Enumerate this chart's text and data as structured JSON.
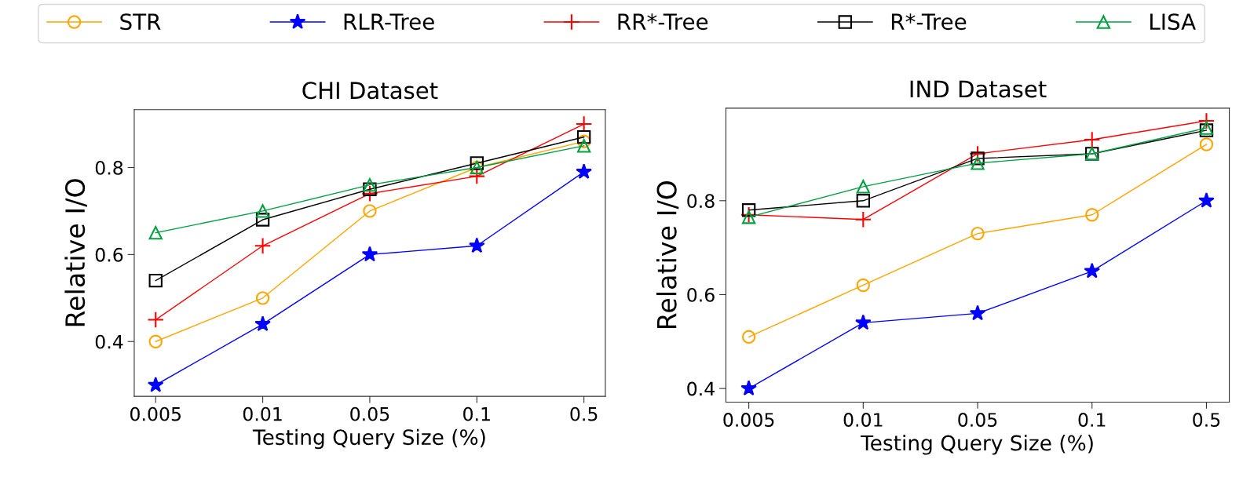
{
  "chart_data": [
    {
      "type": "line",
      "title": "CHI Dataset",
      "xlabel": "Testing Query Size (%)",
      "ylabel": "Relative I/O",
      "categories": [
        "0.005",
        "0.01",
        "0.05",
        "0.1",
        "0.5"
      ],
      "ylim": [
        0.274,
        0.933
      ],
      "yticks": [
        0.4,
        0.6,
        0.8
      ],
      "legend": "top",
      "grid": false,
      "line_style": "solid",
      "series": [
        {
          "name": "STR",
          "color": "#ffa500",
          "marker": "circle",
          "values": [
            0.4,
            0.5,
            0.7,
            0.8,
            0.86
          ]
        },
        {
          "name": "RLR-Tree",
          "color": "#0000ff",
          "marker": "star",
          "values": [
            0.3,
            0.44,
            0.6,
            0.62,
            0.79
          ]
        },
        {
          "name": "RR*-Tree",
          "color": "#ff0000",
          "marker": "cross",
          "values": [
            0.45,
            0.62,
            0.74,
            0.78,
            0.9
          ]
        },
        {
          "name": "R*-Tree",
          "color": "#000000",
          "marker": "square",
          "values": [
            0.54,
            0.68,
            0.75,
            0.81,
            0.87
          ]
        },
        {
          "name": "LISA",
          "color": "#00a040",
          "marker": "triangle",
          "values": [
            0.65,
            0.7,
            0.76,
            0.8,
            0.85
          ]
        }
      ]
    },
    {
      "type": "line",
      "title": "IND Dataset",
      "xlabel": "Testing Query Size (%)",
      "ylabel": "Relative I/O",
      "categories": [
        "0.005",
        "0.01",
        "0.05",
        "0.1",
        "0.5"
      ],
      "ylim": [
        0.371,
        0.997
      ],
      "yticks": [
        0.4,
        0.6,
        0.8
      ],
      "grid": false,
      "line_style": "solid",
      "series": [
        {
          "name": "STR",
          "color": "#ffa500",
          "marker": "circle",
          "values": [
            0.51,
            0.62,
            0.73,
            0.77,
            0.92
          ]
        },
        {
          "name": "RLR-Tree",
          "color": "#0000ff",
          "marker": "star",
          "values": [
            0.4,
            0.54,
            0.56,
            0.65,
            0.8
          ]
        },
        {
          "name": "RR*-Tree",
          "color": "#ff0000",
          "marker": "cross",
          "values": [
            0.77,
            0.76,
            0.9,
            0.93,
            0.97
          ]
        },
        {
          "name": "R*-Tree",
          "color": "#000000",
          "marker": "square",
          "values": [
            0.78,
            0.8,
            0.89,
            0.9,
            0.95
          ]
        },
        {
          "name": "LISA",
          "color": "#00a040",
          "marker": "triangle",
          "values": [
            0.765,
            0.83,
            0.88,
            0.9,
            0.955
          ]
        }
      ]
    }
  ]
}
